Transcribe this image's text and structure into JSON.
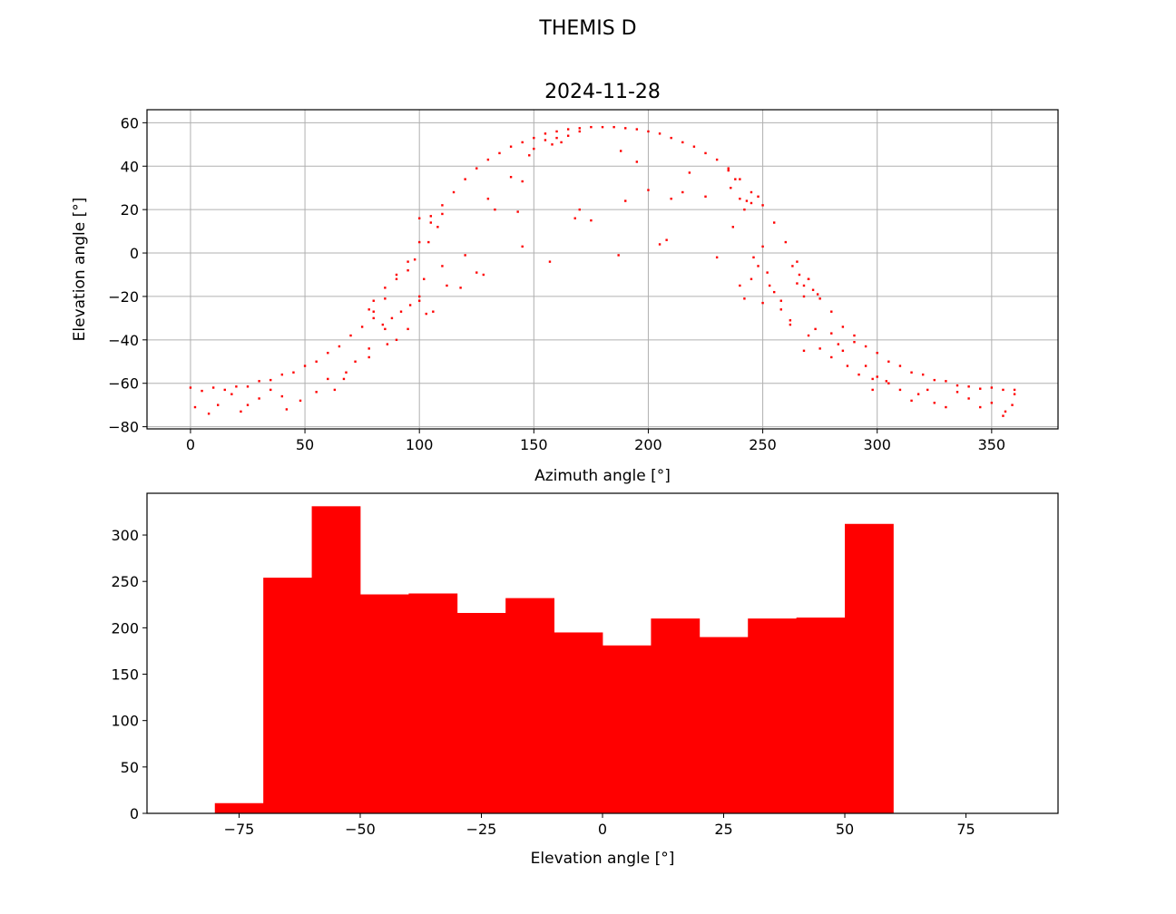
{
  "figure": {
    "suptitle": "THEMIS D"
  },
  "chart_data": [
    {
      "type": "scatter",
      "title": "2024-11-28",
      "xlabel": "Azimuth angle [°]",
      "ylabel": "Elevation angle [°]",
      "xlim": [
        -19,
        379
      ],
      "ylim": [
        -81,
        66
      ],
      "xticks": [
        0,
        50,
        100,
        150,
        200,
        250,
        300,
        350
      ],
      "yticks": [
        -80,
        -60,
        -40,
        -20,
        0,
        20,
        40,
        60
      ],
      "xtick_labels": [
        "0",
        "50",
        "100",
        "150",
        "200",
        "250",
        "300",
        "350"
      ],
      "ytick_labels": [
        "−80",
        "−60",
        "−40",
        "−20",
        "0",
        "20",
        "40",
        "60"
      ],
      "grid": true,
      "color": "#ff0000",
      "series": [
        {
          "points": [
            [
              0,
              -62
            ],
            [
              10,
              -62
            ],
            [
              20,
              -61.5
            ],
            [
              30,
              -59
            ],
            [
              40,
              -56
            ],
            [
              50,
              -52
            ],
            [
              60,
              -46
            ],
            [
              70,
              -38
            ],
            [
              80,
              -27
            ],
            [
              90,
              -12
            ],
            [
              100,
              5
            ],
            [
              110,
              22
            ],
            [
              120,
              34
            ],
            [
              130,
              43
            ],
            [
              140,
              49
            ],
            [
              150,
              53
            ],
            [
              160,
              56
            ],
            [
              170,
              57.5
            ],
            [
              180,
              58
            ],
            [
              190,
              57.5
            ],
            [
              200,
              56
            ],
            [
              210,
              53
            ],
            [
              220,
              49
            ],
            [
              230,
              43
            ],
            [
              240,
              34
            ],
            [
              250,
              22
            ],
            [
              260,
              5
            ],
            [
              270,
              -12
            ],
            [
              280,
              -27
            ],
            [
              290,
              -38
            ],
            [
              300,
              -46
            ],
            [
              310,
              -52
            ],
            [
              320,
              -56
            ],
            [
              330,
              -59
            ],
            [
              340,
              -61.5
            ],
            [
              350,
              -62
            ],
            [
              360,
              -63
            ],
            [
              5,
              -63.5
            ],
            [
              15,
              -63
            ],
            [
              25,
              -61.5
            ],
            [
              35,
              -58.5
            ],
            [
              45,
              -55
            ],
            [
              55,
              -50
            ],
            [
              65,
              -43
            ],
            [
              75,
              -34
            ],
            [
              85,
              -21
            ],
            [
              95,
              -4
            ],
            [
              105,
              14
            ],
            [
              115,
              28
            ],
            [
              125,
              39
            ],
            [
              135,
              46
            ],
            [
              145,
              51
            ],
            [
              155,
              55
            ],
            [
              165,
              57
            ],
            [
              175,
              58
            ],
            [
              185,
              58
            ],
            [
              195,
              57
            ],
            [
              205,
              55
            ],
            [
              215,
              51
            ],
            [
              225,
              46
            ],
            [
              235,
              39
            ],
            [
              245,
              28
            ],
            [
              255,
              14
            ],
            [
              265,
              -4
            ],
            [
              275,
              -21
            ],
            [
              285,
              -34
            ],
            [
              295,
              -43
            ],
            [
              305,
              -50
            ],
            [
              315,
              -55
            ],
            [
              325,
              -58.5
            ],
            [
              335,
              -61
            ],
            [
              345,
              -62.5
            ],
            [
              355,
              -63
            ],
            [
              100,
              16
            ],
            [
              105,
              17
            ],
            [
              110,
              18
            ],
            [
              108,
              12
            ],
            [
              104,
              5
            ],
            [
              98,
              -3
            ],
            [
              95,
              -8
            ],
            [
              90,
              -10
            ],
            [
              85,
              -16
            ],
            [
              80,
              -22
            ],
            [
              78,
              -26
            ],
            [
              80,
              -30
            ],
            [
              84,
              -33
            ],
            [
              88,
              -30
            ],
            [
              92,
              -27
            ],
            [
              96,
              -24
            ],
            [
              100,
              -20
            ],
            [
              235,
              38
            ],
            [
              238,
              34
            ],
            [
              236,
              30
            ],
            [
              240,
              25
            ],
            [
              243,
              24
            ],
            [
              245,
              23
            ],
            [
              242,
              20
            ],
            [
              248,
              26
            ],
            [
              265,
              -14
            ],
            [
              268,
              -15
            ],
            [
              272,
              -17
            ],
            [
              270,
              -12
            ],
            [
              266,
              -10
            ],
            [
              263,
              -6
            ],
            [
              268,
              -20
            ],
            [
              274,
              -19
            ],
            [
              155,
              52
            ],
            [
              160,
              53
            ],
            [
              165,
              54
            ],
            [
              170,
              56
            ],
            [
              148,
              45
            ],
            [
              150,
              48
            ],
            [
              158,
              50
            ],
            [
              162,
              51
            ],
            [
              140,
              35
            ],
            [
              145,
              33
            ],
            [
              130,
              25
            ],
            [
              133,
              20
            ],
            [
              143,
              19
            ],
            [
              170,
              20
            ],
            [
              168,
              16
            ],
            [
              175,
              15
            ],
            [
              190,
              24
            ],
            [
              200,
              29
            ],
            [
              210,
              25
            ],
            [
              215,
              28
            ],
            [
              225,
              26
            ],
            [
              218,
              37
            ],
            [
              195,
              42
            ],
            [
              188,
              47
            ],
            [
              205,
              4
            ],
            [
              208,
              6
            ],
            [
              187,
              -1
            ],
            [
              157,
              -4
            ],
            [
              145,
              3
            ],
            [
              120,
              -1
            ],
            [
              125,
              -9
            ],
            [
              128,
              -10
            ],
            [
              118,
              -16
            ],
            [
              112,
              -15
            ],
            [
              110,
              -6
            ],
            [
              102,
              -12
            ],
            [
              103,
              -28
            ],
            [
              106,
              -27
            ],
            [
              100,
              -22
            ],
            [
              85,
              -35
            ],
            [
              78,
              -44
            ],
            [
              72,
              -50
            ],
            [
              68,
              -55
            ],
            [
              60,
              -58
            ],
            [
              55,
              -64
            ],
            [
              48,
              -68
            ],
            [
              42,
              -72
            ],
            [
              30,
              -67
            ],
            [
              25,
              -70
            ],
            [
              22,
              -73
            ],
            [
              12,
              -70
            ],
            [
              8,
              -74
            ],
            [
              2,
              -71
            ],
            [
              35,
              -63
            ],
            [
              18,
              -65
            ],
            [
              40,
              -66
            ],
            [
              63,
              -63
            ],
            [
              67,
              -58
            ],
            [
              78,
              -48
            ],
            [
              86,
              -42
            ],
            [
              90,
              -40
            ],
            [
              95,
              -35
            ],
            [
              230,
              -2
            ],
            [
              240,
              -15
            ],
            [
              242,
              -21
            ],
            [
              250,
              -23
            ],
            [
              255,
              -18
            ],
            [
              258,
              -26
            ],
            [
              262,
              -33
            ],
            [
              268,
              -45
            ],
            [
              273,
              -35
            ],
            [
              280,
              -37
            ],
            [
              285,
              -45
            ],
            [
              290,
              -41
            ],
            [
              295,
              -52
            ],
            [
              300,
              -57
            ],
            [
              298,
              -63
            ],
            [
              304,
              -59
            ],
            [
              310,
              -63
            ],
            [
              315,
              -68
            ],
            [
              318,
              -65
            ],
            [
              322,
              -63
            ],
            [
              325,
              -69
            ],
            [
              330,
              -71
            ],
            [
              335,
              -64
            ],
            [
              340,
              -67
            ],
            [
              345,
              -71
            ],
            [
              350,
              -69
            ],
            [
              355,
              -75
            ],
            [
              356,
              -73
            ],
            [
              359,
              -70
            ],
            [
              360,
              -65
            ],
            [
              305,
              -60
            ],
            [
              298,
              -58
            ],
            [
              292,
              -56
            ],
            [
              287,
              -52
            ],
            [
              280,
              -48
            ],
            [
              275,
              -44
            ],
            [
              283,
              -42
            ],
            [
              270,
              -38
            ],
            [
              262,
              -31
            ],
            [
              258,
              -22
            ],
            [
              253,
              -15
            ],
            [
              252,
              -9
            ],
            [
              245,
              -12
            ],
            [
              248,
              -6
            ],
            [
              250,
              3
            ],
            [
              237,
              12
            ],
            [
              246,
              -2
            ]
          ]
        }
      ]
    },
    {
      "type": "bar",
      "xlabel": "Elevation angle [°]",
      "ylabel": "",
      "xlim": [
        -94,
        94
      ],
      "ylim": [
        0,
        345
      ],
      "xticks": [
        -75,
        -50,
        -25,
        0,
        25,
        50,
        75
      ],
      "yticks": [
        0,
        50,
        100,
        150,
        200,
        250,
        300
      ],
      "xtick_labels": [
        "−75",
        "−50",
        "−25",
        "0",
        "25",
        "50",
        "75"
      ],
      "ytick_labels": [
        "0",
        "50",
        "100",
        "150",
        "200",
        "250",
        "300"
      ],
      "color": "#ff0000",
      "bin_edges": [
        -80,
        -70,
        -60,
        -50,
        -40,
        -30,
        -20,
        -10,
        0,
        10,
        20,
        30,
        40,
        50,
        60
      ],
      "values": [
        11,
        254,
        331,
        236,
        237,
        216,
        232,
        195,
        181,
        210,
        190,
        210,
        211,
        312
      ]
    }
  ]
}
